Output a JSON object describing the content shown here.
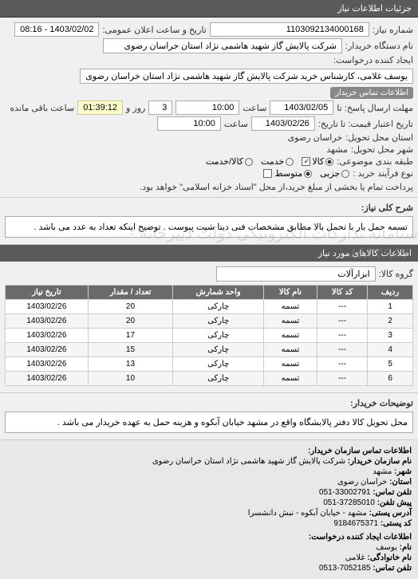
{
  "header": {
    "title": "جزئیات اطلاعات نیاز"
  },
  "general": {
    "request_number_label": "شماره نیاز:",
    "request_number": "1103092134000168",
    "announce_label": "تاریخ و ساعت اعلان عمومی:",
    "announce_value": "1403/02/02 - 08:16",
    "buyer_org_label": "نام دستگاه خریدار:",
    "buyer_org": "شرکت پالایش گاز شهید هاشمی نژاد   استان خراسان رضوی",
    "requester_label": "ایجاد کننده درخواست:",
    "requester": "یوسف غلامی، کارشناس خرید شرکت پالایش گاز شهید هاشمی نژاد   استان خراسان رضوی",
    "contact_link": "اطلاعات تماس خریدار",
    "deadline_send_label": "مهلت ارسال پاسخ: تا",
    "deadline_send_date": "1403/02/05",
    "time_label": "ساعت",
    "deadline_send_time": "10:00",
    "remaining_days": "3",
    "days_label": "روز و",
    "remaining_time": "01:39:12",
    "remaining_label": "ساعت باقی مانده",
    "validity_label": "تاریخ اعتبار قیمت: تا تاریخ:",
    "validity_date": "1403/02/26",
    "validity_time": "10:00",
    "delivery_province_label": "استان محل تحویل:",
    "delivery_province": "خراسان رضوی",
    "delivery_city_label": "شهر محل تحویل:",
    "delivery_city": "مشهد",
    "category_label": "طبقه بندی موضوعی:",
    "category_goods": "کالا",
    "category_service": "خدمت",
    "category_mixed": "کالا/خدمت",
    "process_label": "نوع فرآیند خرید :",
    "process_small": "جزیی",
    "process_medium": "متوسط",
    "payment_note": "پرداخت تمام یا بخشی از مبلغ خرید،از محل \"اسناد خزانه اسلامی\" خواهد بود."
  },
  "need_summary": {
    "label": "شرح کلی نیاز:",
    "text": "تسمه حمل بار با تحمل بالا مطابق مشخصات فنی دیتا شیت پیوست . توضیح اینکه تعداد به عدد می باشد ."
  },
  "goods": {
    "section_title": "اطلاعات کالاهای مورد نیاز",
    "group_label": "گروه کالا:",
    "group_value": "ابزارآلات",
    "columns": [
      "ردیف",
      "کد کالا",
      "نام کالا",
      "واحد شمارش",
      "تعداد / مقدار",
      "تاریخ نیاز"
    ],
    "rows": [
      [
        "1",
        "---",
        "تسمه",
        "چارکی",
        "20",
        "1403/02/26"
      ],
      [
        "2",
        "---",
        "تسمه",
        "چارکی",
        "20",
        "1403/02/26"
      ],
      [
        "3",
        "---",
        "تسمه",
        "چارکی",
        "17",
        "1403/02/26"
      ],
      [
        "4",
        "---",
        "تسمه",
        "چارکی",
        "15",
        "1403/02/26"
      ],
      [
        "5",
        "---",
        "تسمه",
        "چارکی",
        "13",
        "1403/02/26"
      ],
      [
        "6",
        "---",
        "تسمه",
        "چارکی",
        "10",
        "1403/02/26"
      ]
    ]
  },
  "buyer_note": {
    "label": "توضیحات خریدار:",
    "text": "محل تحویل کالا دفتر پالایشگاه واقع در مشهد خیابان آبکوه و هزینه حمل به عهده خریدار می باشد ."
  },
  "watermark": "ستامانه تدارکات الکترونیکی دولت\nدبیرخانه - ۸۸۳۴۹۶۷۰",
  "contact": {
    "title": "اطلاعات تماس سازمان خریدار:",
    "org_label": "نام سازمان خریدار:",
    "org": "شرکت پالایش گاز شهید هاشمی نژاد استان خراسان رضوی",
    "city_label": "شهر:",
    "city": "مشهد",
    "province_label": "استان:",
    "province": "خراسان رضوی",
    "phone_label": "تلفن تماس:",
    "phone": "33002791-051",
    "prefix_label": "پیش تلفن:",
    "prefix": "37285010-051",
    "address_label": "آدرس پستی:",
    "address": "مشهد - خیابان آبکوه - نبش دانشسرا",
    "postal_label": "کد پستی:",
    "postal": "9184675371",
    "creator_title": "اطلاعات ایجاد کننده درخواست:",
    "fname_label": "نام:",
    "fname": "یوسف",
    "lname_label": "نام خانوادگی:",
    "lname": "غلامی",
    "cphone_label": "تلفن تماس:",
    "cphone": "7052185-0513"
  }
}
